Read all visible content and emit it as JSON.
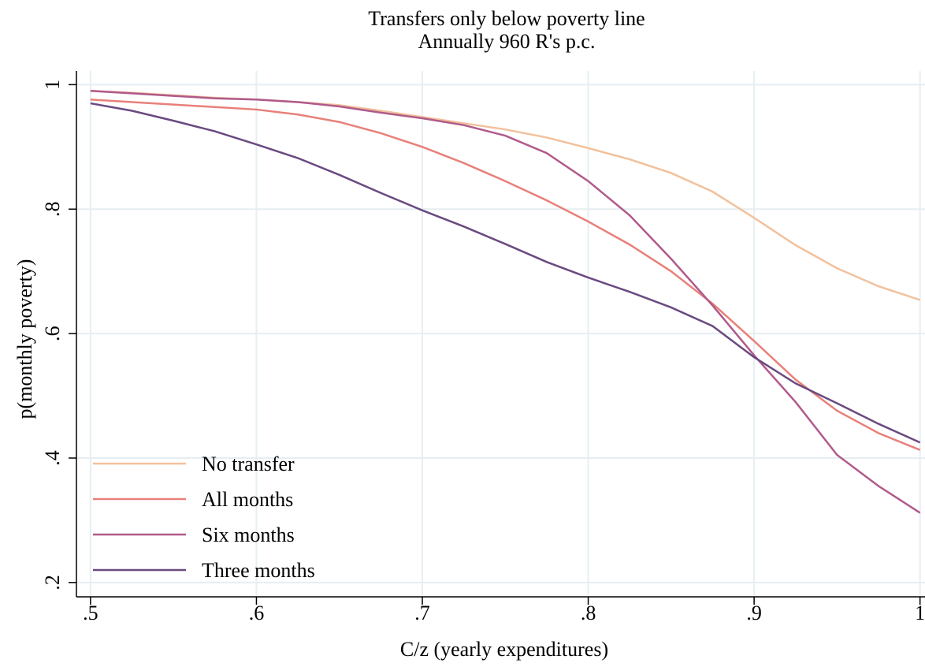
{
  "chart_data": {
    "type": "line",
    "title": "Transfers only below poverty line",
    "subtitle": "Annually 960 R's p.c.",
    "x_label": "C/z (yearly expenditures)",
    "y_label": "p(monthly poverty)",
    "x": [
      0.5,
      0.525,
      0.55,
      0.575,
      0.6,
      0.625,
      0.65,
      0.675,
      0.7,
      0.725,
      0.75,
      0.775,
      0.8,
      0.825,
      0.85,
      0.875,
      0.9,
      0.925,
      0.95,
      0.975,
      1
    ],
    "series": [
      {
        "name": "No transfer",
        "color": "#f2c19c",
        "values": [
          0.99,
          0.987,
          0.983,
          0.979,
          0.976,
          0.972,
          0.967,
          0.958,
          0.948,
          0.938,
          0.928,
          0.915,
          0.898,
          0.88,
          0.858,
          0.828,
          0.786,
          0.742,
          0.705,
          0.676,
          0.654
        ]
      },
      {
        "name": "All months",
        "color": "#e8807a",
        "values": [
          0.976,
          0.972,
          0.968,
          0.964,
          0.96,
          0.952,
          0.94,
          0.922,
          0.9,
          0.874,
          0.845,
          0.814,
          0.78,
          0.743,
          0.7,
          0.648,
          0.588,
          0.526,
          0.476,
          0.44,
          0.413
        ]
      },
      {
        "name": "Six months",
        "color": "#b05a8a",
        "values": [
          0.99,
          0.986,
          0.982,
          0.978,
          0.976,
          0.972,
          0.965,
          0.955,
          0.946,
          0.935,
          0.918,
          0.89,
          0.845,
          0.79,
          0.72,
          0.645,
          0.565,
          0.49,
          0.405,
          0.355,
          0.312
        ]
      },
      {
        "name": "Three months",
        "color": "#6a4a80",
        "values": [
          0.97,
          0.958,
          0.942,
          0.925,
          0.904,
          0.882,
          0.855,
          0.826,
          0.798,
          0.772,
          0.744,
          0.715,
          0.69,
          0.667,
          0.642,
          0.612,
          0.562,
          0.52,
          0.488,
          0.455,
          0.425
        ]
      }
    ],
    "xlim": [
      0.4915,
      1.003
    ],
    "ylim": [
      0.177,
      1.022
    ],
    "xticks": [
      {
        "value": 0.5,
        "label": ".5"
      },
      {
        "value": 0.6,
        "label": ".6"
      },
      {
        "value": 0.7,
        "label": ".7"
      },
      {
        "value": 0.8,
        "label": ".8"
      },
      {
        "value": 0.9,
        "label": ".9"
      },
      1
    ],
    "yticks": [
      {
        "value": 0.2,
        "label": ".2"
      },
      {
        "value": 0.4,
        "label": ".4"
      },
      {
        "value": 0.6,
        "label": ".6"
      },
      {
        "value": 0.8,
        "label": ".8"
      },
      1
    ],
    "grid": true,
    "legend": "lower-left"
  }
}
